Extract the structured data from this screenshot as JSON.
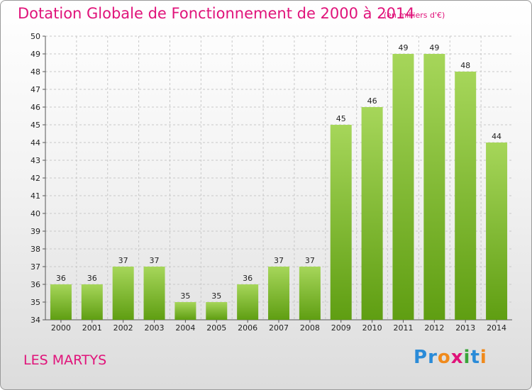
{
  "chart_data": {
    "type": "bar",
    "title": "Dotation Globale de Fonctionnement de 2000 à 2014",
    "subtitle": "(en milliers d'€)",
    "xlabel": "",
    "ylabel": "",
    "categories": [
      "2000",
      "2001",
      "2002",
      "2003",
      "2004",
      "2005",
      "2006",
      "2007",
      "2008",
      "2009",
      "2010",
      "2011",
      "2012",
      "2013",
      "2014"
    ],
    "values": [
      36,
      36,
      37,
      37,
      35,
      35,
      36,
      37,
      37,
      45,
      46,
      49,
      49,
      48,
      44
    ],
    "ylim": [
      34,
      50
    ],
    "yticks": [
      34,
      35,
      36,
      37,
      38,
      39,
      40,
      41,
      42,
      43,
      44,
      45,
      46,
      47,
      48,
      49,
      50
    ],
    "grid": true,
    "bar_color_top": "#a6d65a",
    "bar_color_bottom": "#5f9e12"
  },
  "commune_name": "LES MARTYS",
  "brand": {
    "letters": [
      "P",
      "r",
      "o",
      "x",
      "i",
      "t",
      "i"
    ],
    "colors": [
      "#2a8bd8",
      "#2a8bd8",
      "#f08a1c",
      "#e0137a",
      "#3aa53a",
      "#2a8bd8",
      "#f08a1c"
    ]
  }
}
